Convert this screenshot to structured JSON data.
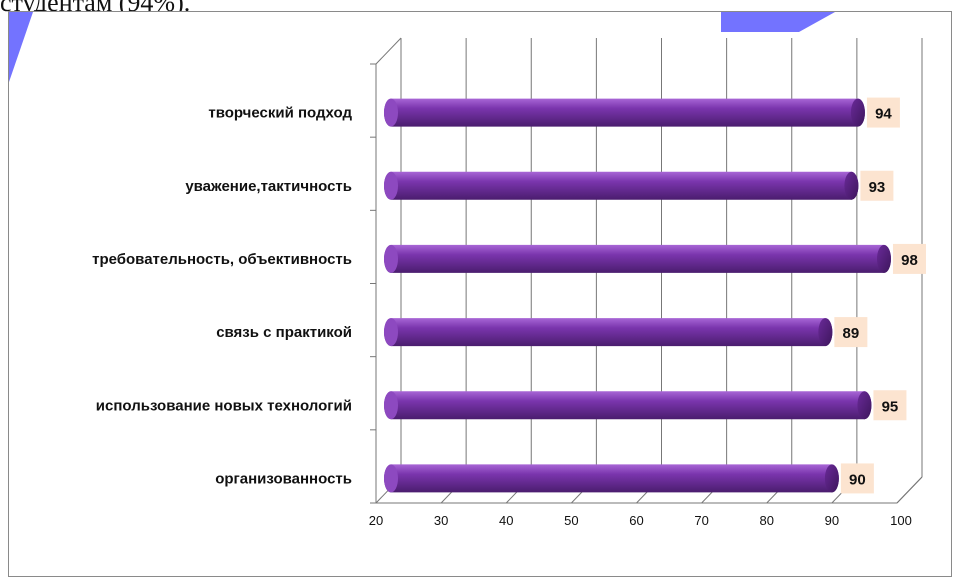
{
  "page": {
    "top_text": "студентам (94%)."
  },
  "colors": {
    "bar_main": "#7030a0",
    "bar_dark": "#4b1f70",
    "bar_light": "#9b59c9",
    "label_bg": "#fce4d0",
    "decor_blue": "#5b5bff",
    "grid": "#777777"
  },
  "chart_data": {
    "type": "bar",
    "orientation": "horizontal",
    "style": "3d-cylinder",
    "categories": [
      "творческий подход",
      "уважение,тактичность",
      "требовательность, объективность",
      "связь с практикой",
      "использование новых технологий",
      "организованность"
    ],
    "values": [
      94,
      93,
      98,
      89,
      95,
      90
    ],
    "xlim": [
      20,
      100
    ],
    "xticks": [
      20,
      30,
      40,
      50,
      60,
      70,
      80,
      90,
      100
    ],
    "title": "",
    "xlabel": "",
    "ylabel": "",
    "grid": true,
    "legend": "none"
  }
}
